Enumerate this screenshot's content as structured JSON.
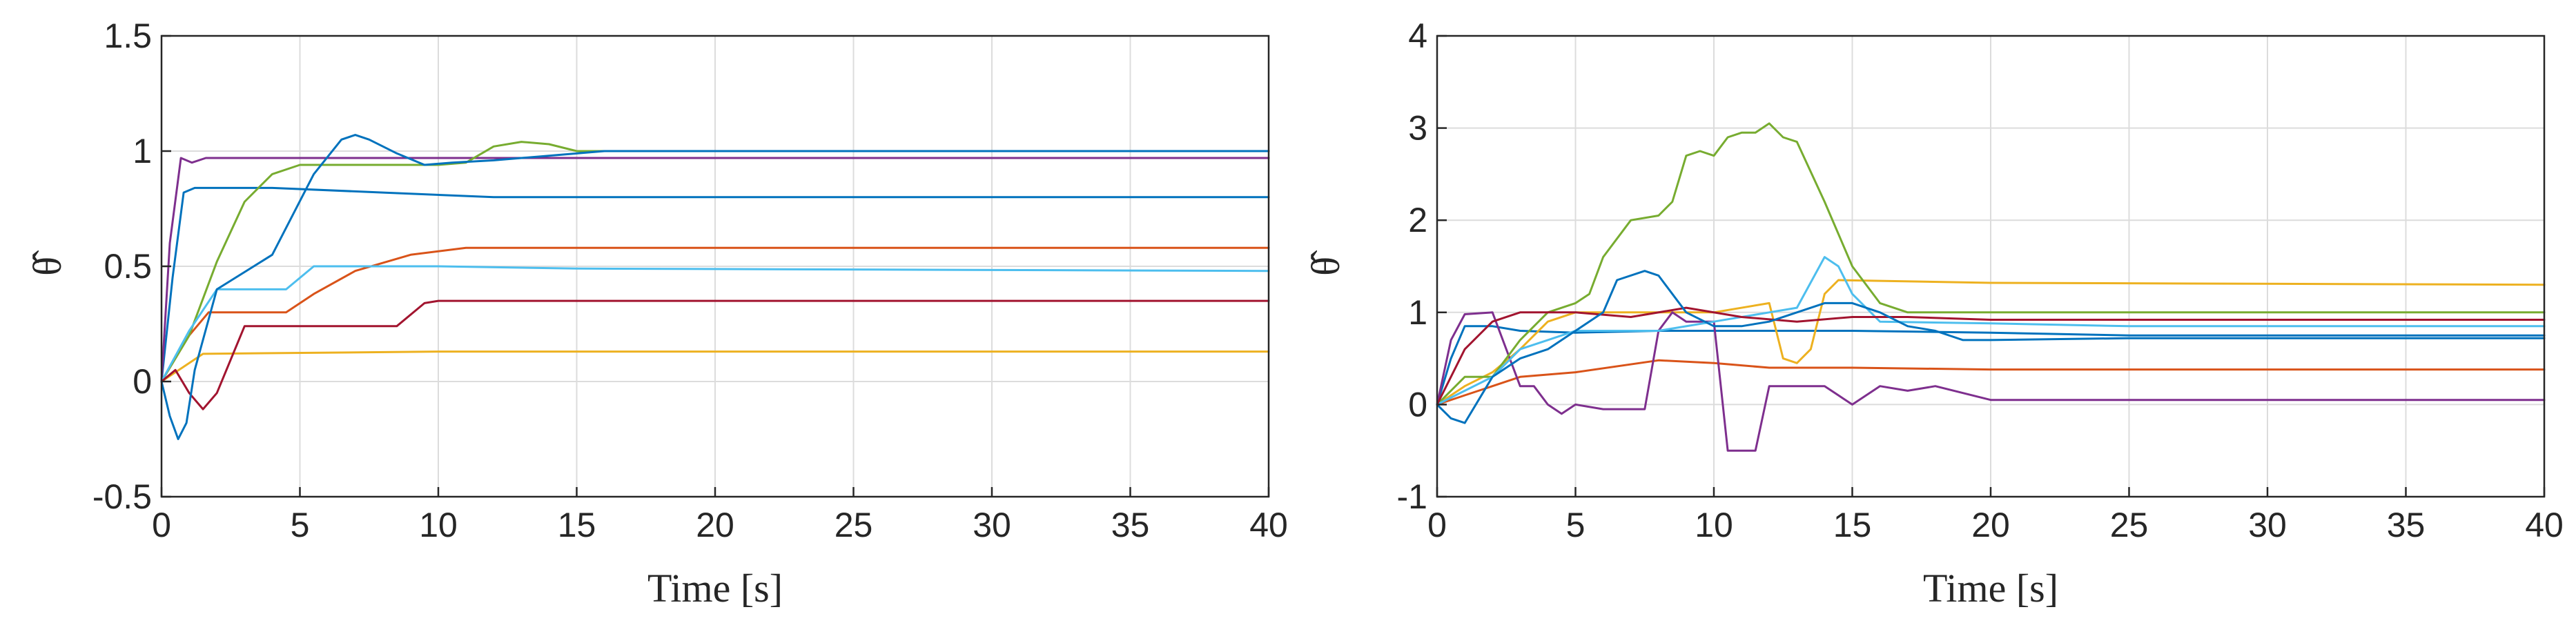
{
  "chart_data": [
    {
      "type": "line",
      "title": "",
      "xlabel": "Time [s]",
      "ylabel": "θ̂",
      "xlim": [
        0,
        40
      ],
      "ylim": [
        -0.5,
        1.5
      ],
      "xticks": [
        0,
        5,
        10,
        15,
        20,
        25,
        30,
        35,
        40
      ],
      "xtick_labels": [
        "0",
        "5",
        "10",
        "15",
        "20",
        "25",
        "30",
        "35",
        "40"
      ],
      "yticks": [
        -0.5,
        0,
        0.5,
        1,
        1.5
      ],
      "ytick_labels": [
        "-0.5",
        "0",
        "0.5",
        "1",
        "1.5"
      ],
      "grid": true,
      "series": [
        {
          "color": "#0072BD",
          "points": [
            [
              0,
              0
            ],
            [
              0.4,
              0.45
            ],
            [
              0.8,
              0.82
            ],
            [
              1.2,
              0.84
            ],
            [
              4,
              0.84
            ],
            [
              8,
              0.82
            ],
            [
              12,
              0.8
            ],
            [
              40,
              0.8
            ]
          ]
        },
        {
          "color": "#D95319",
          "points": [
            [
              0,
              0
            ],
            [
              0.5,
              0.1
            ],
            [
              1,
              0.2
            ],
            [
              1.7,
              0.3
            ],
            [
              4.5,
              0.3
            ],
            [
              5.5,
              0.38
            ],
            [
              7,
              0.48
            ],
            [
              9,
              0.55
            ],
            [
              11,
              0.58
            ],
            [
              20,
              0.58
            ],
            [
              40,
              0.58
            ]
          ]
        },
        {
          "color": "#EDB120",
          "points": [
            [
              0,
              0
            ],
            [
              0.5,
              0.04
            ],
            [
              1,
              0.08
            ],
            [
              1.5,
              0.12
            ],
            [
              10,
              0.13
            ],
            [
              40,
              0.13
            ]
          ]
        },
        {
          "color": "#7E2F8E",
          "points": [
            [
              0,
              0
            ],
            [
              0.3,
              0.6
            ],
            [
              0.7,
              0.97
            ],
            [
              1.1,
              0.95
            ],
            [
              1.6,
              0.97
            ],
            [
              5,
              0.97
            ],
            [
              40,
              0.97
            ]
          ]
        },
        {
          "color": "#77AC30",
          "points": [
            [
              0,
              0
            ],
            [
              1,
              0.2
            ],
            [
              2,
              0.52
            ],
            [
              3,
              0.78
            ],
            [
              4,
              0.9
            ],
            [
              5,
              0.94
            ],
            [
              10,
              0.94
            ],
            [
              11,
              0.95
            ],
            [
              12,
              1.02
            ],
            [
              13,
              1.04
            ],
            [
              14,
              1.03
            ],
            [
              15,
              1.0
            ],
            [
              17,
              1.0
            ],
            [
              40,
              1.0
            ]
          ]
        },
        {
          "color": "#4DBEEE",
          "points": [
            [
              0,
              0
            ],
            [
              1,
              0.22
            ],
            [
              2,
              0.4
            ],
            [
              4.5,
              0.4
            ],
            [
              5.5,
              0.5
            ],
            [
              10,
              0.5
            ],
            [
              15,
              0.49
            ],
            [
              40,
              0.48
            ]
          ]
        },
        {
          "color": "#A2142F",
          "points": [
            [
              0,
              0
            ],
            [
              0.5,
              0.05
            ],
            [
              1,
              -0.05
            ],
            [
              1.5,
              -0.12
            ],
            [
              2,
              -0.05
            ],
            [
              3,
              0.24
            ],
            [
              8.5,
              0.24
            ],
            [
              9.5,
              0.34
            ],
            [
              10,
              0.35
            ],
            [
              40,
              0.35
            ]
          ]
        },
        {
          "color": "#0072BD",
          "points": [
            [
              0,
              0
            ],
            [
              0.3,
              -0.15
            ],
            [
              0.6,
              -0.25
            ],
            [
              0.9,
              -0.18
            ],
            [
              1.2,
              0.05
            ],
            [
              2,
              0.4
            ],
            [
              4,
              0.55
            ],
            [
              5.5,
              0.9
            ],
            [
              6.5,
              1.05
            ],
            [
              7,
              1.07
            ],
            [
              7.5,
              1.05
            ],
            [
              8.5,
              0.99
            ],
            [
              9.5,
              0.94
            ],
            [
              10.5,
              0.95
            ],
            [
              12,
              0.96
            ],
            [
              14,
              0.98
            ],
            [
              16,
              1.0
            ],
            [
              20,
              1.0
            ],
            [
              22,
              1.0
            ],
            [
              40,
              1.0
            ]
          ]
        }
      ]
    },
    {
      "type": "line",
      "title": "",
      "xlabel": "Time [s]",
      "ylabel": "θ̂",
      "xlim": [
        0,
        40
      ],
      "ylim": [
        -1,
        4
      ],
      "xticks": [
        0,
        5,
        10,
        15,
        20,
        25,
        30,
        35,
        40
      ],
      "xtick_labels": [
        "0",
        "5",
        "10",
        "15",
        "20",
        "25",
        "30",
        "35",
        "40"
      ],
      "yticks": [
        -1,
        0,
        1,
        2,
        3,
        4
      ],
      "ytick_labels": [
        "-1",
        "0",
        "1",
        "2",
        "3",
        "4"
      ],
      "grid": true,
      "series": [
        {
          "color": "#0072BD",
          "points": [
            [
              0,
              0
            ],
            [
              0.5,
              0.5
            ],
            [
              1,
              0.85
            ],
            [
              2,
              0.85
            ],
            [
              3,
              0.8
            ],
            [
              5,
              0.78
            ],
            [
              8,
              0.8
            ],
            [
              10,
              0.8
            ],
            [
              15,
              0.8
            ],
            [
              20,
              0.78
            ],
            [
              25,
              0.75
            ],
            [
              40,
              0.75
            ]
          ]
        },
        {
          "color": "#D95319",
          "points": [
            [
              0,
              0
            ],
            [
              1,
              0.1
            ],
            [
              2,
              0.2
            ],
            [
              3,
              0.3
            ],
            [
              5,
              0.35
            ],
            [
              8,
              0.48
            ],
            [
              10,
              0.45
            ],
            [
              12,
              0.4
            ],
            [
              15,
              0.4
            ],
            [
              20,
              0.38
            ],
            [
              40,
              0.38
            ]
          ]
        },
        {
          "color": "#EDB120",
          "points": [
            [
              0,
              0
            ],
            [
              1,
              0.2
            ],
            [
              2,
              0.35
            ],
            [
              3,
              0.6
            ],
            [
              4,
              0.9
            ],
            [
              5,
              1.0
            ],
            [
              8,
              1.0
            ],
            [
              10,
              1.0
            ],
            [
              12,
              1.1
            ],
            [
              12.5,
              0.5
            ],
            [
              13,
              0.45
            ],
            [
              13.5,
              0.6
            ],
            [
              14,
              1.2
            ],
            [
              14.5,
              1.35
            ],
            [
              20,
              1.32
            ],
            [
              40,
              1.3
            ]
          ]
        },
        {
          "color": "#7E2F8E",
          "points": [
            [
              0,
              0
            ],
            [
              0.5,
              0.7
            ],
            [
              1,
              0.98
            ],
            [
              2,
              1.0
            ],
            [
              3,
              0.2
            ],
            [
              3.5,
              0.2
            ],
            [
              4,
              0.0
            ],
            [
              4.5,
              -0.1
            ],
            [
              5,
              0.0
            ],
            [
              6,
              -0.05
            ],
            [
              7.5,
              -0.05
            ],
            [
              8,
              0.8
            ],
            [
              8.5,
              1.0
            ],
            [
              9,
              0.9
            ],
            [
              10,
              0.9
            ],
            [
              10.5,
              -0.5
            ],
            [
              11.5,
              -0.5
            ],
            [
              12,
              0.2
            ],
            [
              13,
              0.2
            ],
            [
              14,
              0.2
            ],
            [
              14.5,
              0.1
            ],
            [
              15,
              0.0
            ],
            [
              16,
              0.2
            ],
            [
              17,
              0.15
            ],
            [
              18,
              0.2
            ],
            [
              20,
              0.05
            ],
            [
              40,
              0.05
            ]
          ]
        },
        {
          "color": "#77AC30",
          "points": [
            [
              0,
              0
            ],
            [
              1,
              0.3
            ],
            [
              2,
              0.3
            ],
            [
              3,
              0.7
            ],
            [
              4,
              1.0
            ],
            [
              5,
              1.1
            ],
            [
              5.5,
              1.2
            ],
            [
              6,
              1.6
            ],
            [
              7,
              2.0
            ],
            [
              8,
              2.05
            ],
            [
              8.5,
              2.2
            ],
            [
              9,
              2.7
            ],
            [
              9.5,
              2.75
            ],
            [
              10,
              2.7
            ],
            [
              10.5,
              2.9
            ],
            [
              11,
              2.95
            ],
            [
              11.5,
              2.95
            ],
            [
              12,
              3.05
            ],
            [
              12.5,
              2.9
            ],
            [
              13,
              2.85
            ],
            [
              14,
              2.2
            ],
            [
              15,
              1.5
            ],
            [
              16,
              1.1
            ],
            [
              17,
              1.0
            ],
            [
              20,
              1.0
            ],
            [
              25,
              1.0
            ],
            [
              40,
              1.0
            ]
          ]
        },
        {
          "color": "#4DBEEE",
          "points": [
            [
              0,
              0
            ],
            [
              1,
              0.15
            ],
            [
              2,
              0.3
            ],
            [
              3,
              0.6
            ],
            [
              4,
              0.7
            ],
            [
              5,
              0.8
            ],
            [
              8,
              0.8
            ],
            [
              10,
              0.9
            ],
            [
              12,
              1.0
            ],
            [
              13,
              1.05
            ],
            [
              14,
              1.6
            ],
            [
              14.5,
              1.5
            ],
            [
              15,
              1.2
            ],
            [
              16,
              0.9
            ],
            [
              20,
              0.88
            ],
            [
              25,
              0.85
            ],
            [
              40,
              0.85
            ]
          ]
        },
        {
          "color": "#A2142F",
          "points": [
            [
              0,
              0
            ],
            [
              1,
              0.6
            ],
            [
              2,
              0.9
            ],
            [
              3,
              1.0
            ],
            [
              5,
              1.0
            ],
            [
              7,
              0.95
            ],
            [
              9,
              1.05
            ],
            [
              11,
              0.95
            ],
            [
              13,
              0.9
            ],
            [
              15,
              0.95
            ],
            [
              17,
              0.95
            ],
            [
              20,
              0.92
            ],
            [
              25,
              0.92
            ],
            [
              40,
              0.92
            ]
          ]
        },
        {
          "color": "#0072BD",
          "points": [
            [
              0,
              0
            ],
            [
              0.5,
              -0.15
            ],
            [
              1,
              -0.2
            ],
            [
              1.5,
              0.05
            ],
            [
              2,
              0.3
            ],
            [
              3,
              0.5
            ],
            [
              4,
              0.6
            ],
            [
              5,
              0.8
            ],
            [
              6,
              1.0
            ],
            [
              6.5,
              1.35
            ],
            [
              7.5,
              1.45
            ],
            [
              8,
              1.4
            ],
            [
              9,
              1.0
            ],
            [
              10,
              0.85
            ],
            [
              11,
              0.85
            ],
            [
              12,
              0.9
            ],
            [
              13,
              1.0
            ],
            [
              14,
              1.1
            ],
            [
              15,
              1.1
            ],
            [
              16,
              1.0
            ],
            [
              17,
              0.85
            ],
            [
              18,
              0.8
            ],
            [
              19,
              0.7
            ],
            [
              20,
              0.7
            ],
            [
              25,
              0.72
            ],
            [
              40,
              0.72
            ]
          ]
        }
      ]
    }
  ]
}
